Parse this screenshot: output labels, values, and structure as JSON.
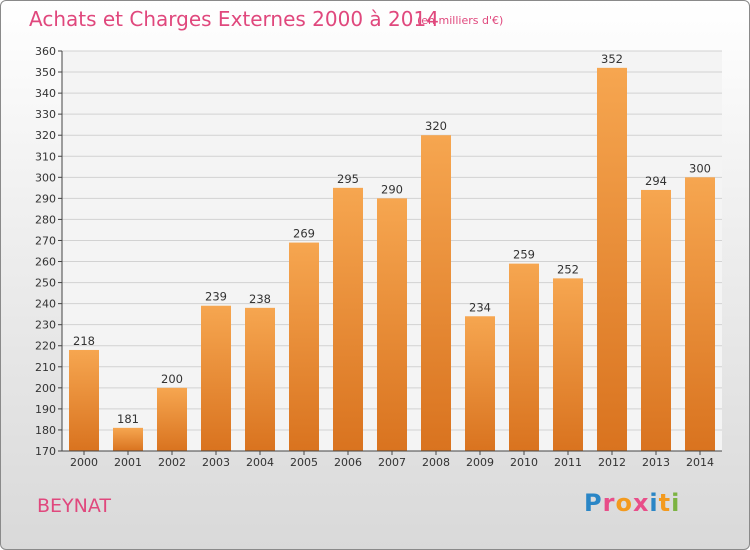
{
  "header": {
    "title": "Achats et Charges Externes 2000 à 2014",
    "unit": "(en milliers d'€)"
  },
  "footer": {
    "place": "BEYNAT",
    "logo_letters": [
      "P",
      "r",
      "o",
      "x",
      "i",
      "t",
      "i"
    ],
    "logo_colors": [
      "#2a86c6",
      "#e84e89",
      "#f39a1e",
      "#e84e89",
      "#2a86c6",
      "#f39a1e",
      "#7cb342"
    ]
  },
  "colors": {
    "bar_light": "#f6a650",
    "bar_dark": "#d9731f",
    "grid": "#d2d2d2",
    "axis": "#444444",
    "title": "#e0487d"
  },
  "chart_data": {
    "type": "bar",
    "title": "Achats et Charges Externes 2000 à 2014",
    "subtitle": "(en milliers d'€)",
    "xlabel": "",
    "ylabel": "",
    "categories": [
      "2000",
      "2001",
      "2002",
      "2003",
      "2004",
      "2005",
      "2006",
      "2007",
      "2008",
      "2009",
      "2010",
      "2011",
      "2012",
      "2013",
      "2014"
    ],
    "values": [
      218,
      181,
      200,
      239,
      238,
      269,
      295,
      290,
      320,
      234,
      259,
      252,
      352,
      294,
      300
    ],
    "ylim": [
      170,
      360
    ],
    "yticks": [
      170,
      180,
      190,
      200,
      210,
      220,
      230,
      240,
      250,
      260,
      270,
      280,
      290,
      300,
      310,
      320,
      330,
      340,
      350,
      360
    ],
    "grid": true,
    "legend": "none"
  }
}
